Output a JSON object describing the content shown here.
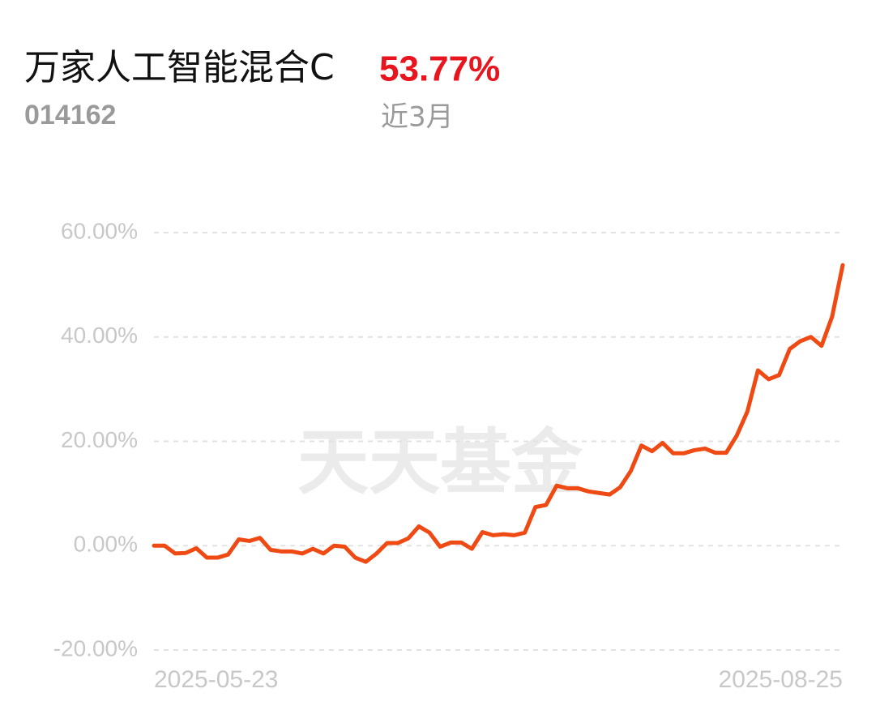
{
  "chart_data": {
    "type": "line",
    "title": "万家人工智能混合C",
    "highlight": "53.77%",
    "code": "014162",
    "period": "近3月",
    "watermark": "天天基金",
    "color": "#f04a14",
    "categories": [
      "2025-05-23",
      null,
      null,
      null,
      null,
      null,
      null,
      null,
      null,
      null,
      null,
      null,
      null,
      null,
      null,
      null,
      null,
      null,
      null,
      null,
      null,
      null,
      null,
      null,
      null,
      null,
      null,
      null,
      null,
      null,
      null,
      null,
      null,
      null,
      null,
      null,
      null,
      null,
      null,
      null,
      null,
      null,
      null,
      null,
      null,
      null,
      null,
      null,
      null,
      null,
      null,
      null,
      null,
      null,
      null,
      null,
      null,
      null,
      null,
      null,
      null,
      null,
      null,
      null,
      null,
      "2025-08-25"
    ],
    "values": [
      0,
      0,
      -1.5,
      -1.4,
      -0.5,
      -2.3,
      -2.3,
      -1.7,
      1.2,
      0.9,
      1.5,
      -0.8,
      -1.1,
      -1.1,
      -1.5,
      -0.6,
      -1.5,
      0,
      -0.2,
      -2.3,
      -3.1,
      -1.5,
      0.5,
      0.5,
      1.4,
      3.7,
      2.5,
      -0.2,
      0.6,
      0.6,
      -0.6,
      2.6,
      2.0,
      2.2,
      2.0,
      2.5,
      7.4,
      7.8,
      11.5,
      11.0,
      11.0,
      10.4,
      10.1,
      9.8,
      11.2,
      14.3,
      19.2,
      18.1,
      19.7,
      17.7,
      17.7,
      18.3,
      18.6,
      17.8,
      17.8,
      21.1,
      25.7,
      33.6,
      31.9,
      32.7,
      37.7,
      39.2,
      40.0,
      38.3,
      43.9,
      53.77
    ],
    "ylim": [
      -20,
      60
    ],
    "yticks": [
      {
        "value": 60,
        "label": "60.00%"
      },
      {
        "value": 40,
        "label": "40.00%"
      },
      {
        "value": 20,
        "label": "20.00%"
      },
      {
        "value": 0,
        "label": "0.00%"
      },
      {
        "value": -20,
        "label": "-20.00%"
      }
    ],
    "grid": true
  }
}
